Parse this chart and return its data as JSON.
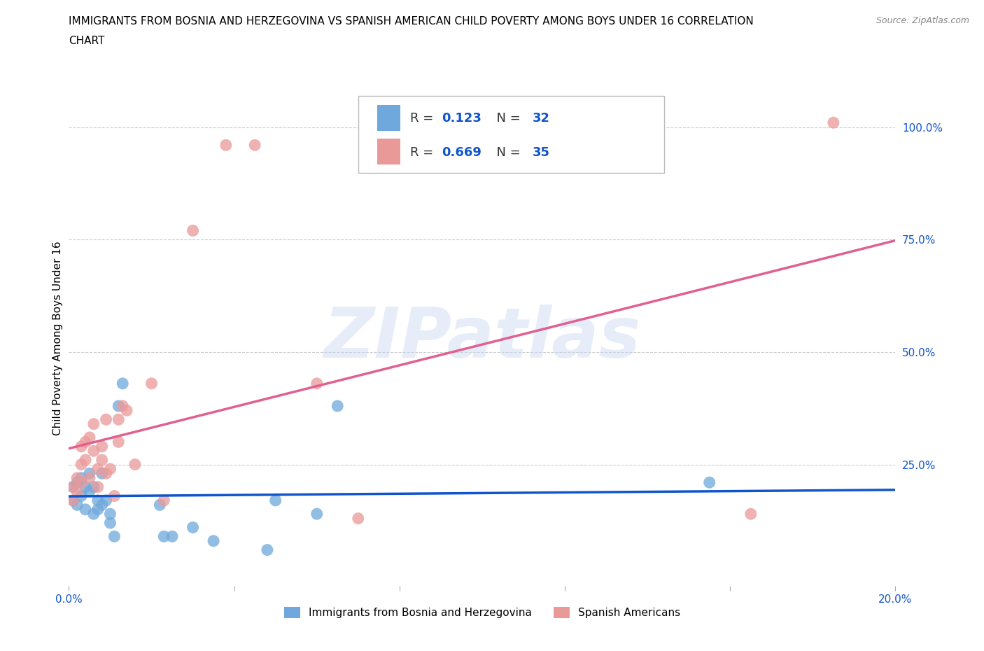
{
  "title": "IMMIGRANTS FROM BOSNIA AND HERZEGOVINA VS SPANISH AMERICAN CHILD POVERTY AMONG BOYS UNDER 16 CORRELATION\nCHART",
  "source": "Source: ZipAtlas.com",
  "ylabel": "Child Poverty Among Boys Under 16",
  "watermark": "ZIPatlas",
  "blue_label": "Immigrants from Bosnia and Herzegovina",
  "pink_label": "Spanish Americans",
  "blue_R": 0.123,
  "blue_N": 32,
  "pink_R": 0.669,
  "pink_N": 35,
  "xlim": [
    0.0,
    0.2
  ],
  "ylim": [
    -0.02,
    1.08
  ],
  "blue_color": "#6fa8dc",
  "pink_color": "#ea9999",
  "blue_line_color": "#1155cc",
  "pink_line_color": "#e06090",
  "blue_scatter_x": [
    0.001,
    0.001,
    0.002,
    0.002,
    0.003,
    0.003,
    0.004,
    0.004,
    0.005,
    0.005,
    0.006,
    0.006,
    0.007,
    0.007,
    0.008,
    0.008,
    0.009,
    0.01,
    0.01,
    0.011,
    0.012,
    0.013,
    0.022,
    0.023,
    0.025,
    0.03,
    0.035,
    0.048,
    0.05,
    0.06,
    0.065,
    0.155
  ],
  "blue_scatter_y": [
    0.17,
    0.2,
    0.16,
    0.21,
    0.18,
    0.22,
    0.15,
    0.2,
    0.19,
    0.23,
    0.14,
    0.2,
    0.15,
    0.17,
    0.16,
    0.23,
    0.17,
    0.12,
    0.14,
    0.09,
    0.38,
    0.43,
    0.16,
    0.09,
    0.09,
    0.11,
    0.08,
    0.06,
    0.17,
    0.14,
    0.38,
    0.21
  ],
  "pink_scatter_x": [
    0.001,
    0.001,
    0.002,
    0.002,
    0.003,
    0.003,
    0.003,
    0.004,
    0.004,
    0.005,
    0.005,
    0.006,
    0.006,
    0.007,
    0.007,
    0.008,
    0.008,
    0.009,
    0.009,
    0.01,
    0.011,
    0.012,
    0.012,
    0.013,
    0.014,
    0.016,
    0.02,
    0.023,
    0.03,
    0.038,
    0.045,
    0.06,
    0.07,
    0.165,
    0.185
  ],
  "pink_scatter_y": [
    0.17,
    0.2,
    0.19,
    0.22,
    0.21,
    0.25,
    0.29,
    0.26,
    0.3,
    0.22,
    0.31,
    0.28,
    0.34,
    0.2,
    0.24,
    0.26,
    0.29,
    0.23,
    0.35,
    0.24,
    0.18,
    0.3,
    0.35,
    0.38,
    0.37,
    0.25,
    0.43,
    0.17,
    0.77,
    0.96,
    0.96,
    0.43,
    0.13,
    0.14,
    1.01
  ],
  "xticks": [
    0.0,
    0.04,
    0.08,
    0.12,
    0.16,
    0.2
  ],
  "xtick_labels": [
    "0.0%",
    "",
    "",
    "",
    "",
    "20.0%"
  ],
  "ytick_right": [
    0.25,
    0.5,
    0.75,
    1.0
  ],
  "ytick_right_labels": [
    "25.0%",
    "50.0%",
    "75.0%",
    "100.0%"
  ],
  "grid_color": "#cccccc",
  "bg_color": "#ffffff"
}
